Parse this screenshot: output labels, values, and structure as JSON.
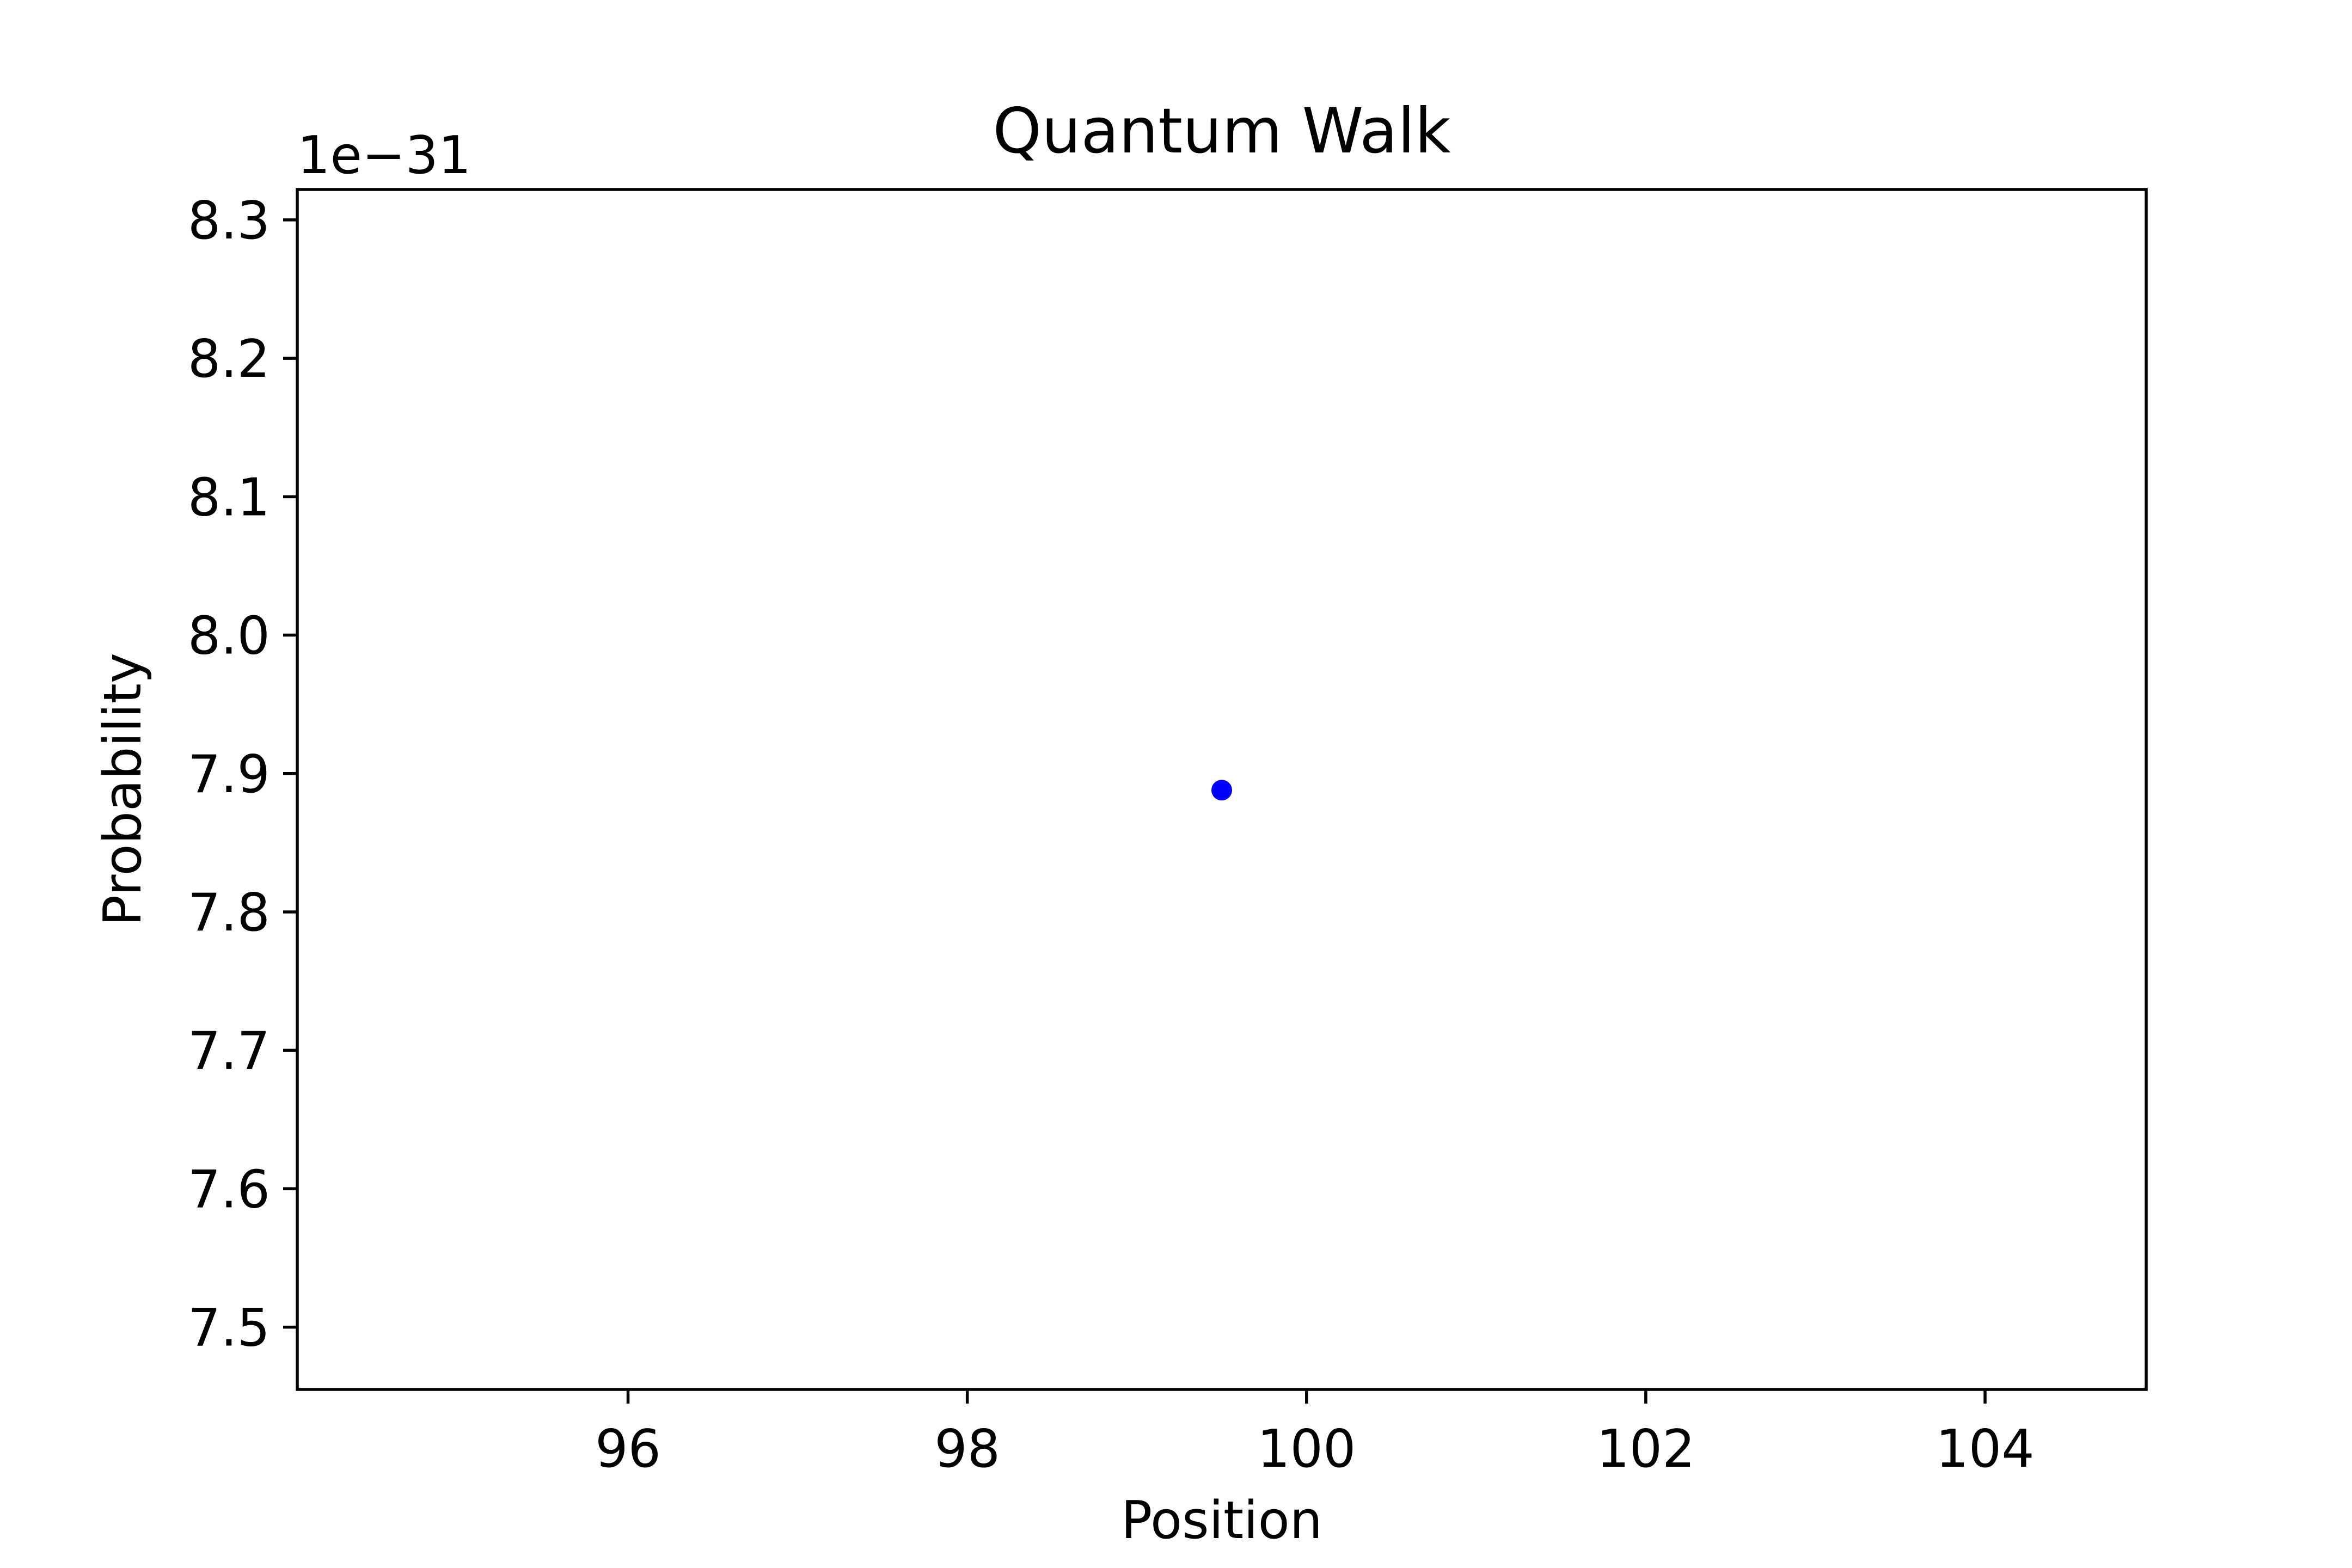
{
  "chart_data": {
    "type": "scatter",
    "title": "Quantum Walk",
    "xlabel": "Position",
    "ylabel": "Probability",
    "y_offset_label": "1e−31",
    "xlim": [
      94.05,
      104.95
    ],
    "ylim": [
      7.455,
      8.322
    ],
    "y_scale_exponent": -31,
    "xticks": [
      96,
      98,
      100,
      102,
      104
    ],
    "xtick_labels": [
      "96",
      "98",
      "100",
      "102",
      "104"
    ],
    "yticks": [
      7.5,
      7.6,
      7.7,
      7.8,
      7.9,
      8.0,
      8.1,
      8.2,
      8.3
    ],
    "ytick_labels": [
      "7.5",
      "7.6",
      "7.7",
      "7.8",
      "7.9",
      "8.0",
      "8.1",
      "8.2",
      "8.3"
    ],
    "grid": false,
    "legend": "none",
    "series": [
      {
        "color": "#0000ff",
        "points": [
          {
            "x": 99.5,
            "y": 7.888
          }
        ]
      }
    ]
  }
}
